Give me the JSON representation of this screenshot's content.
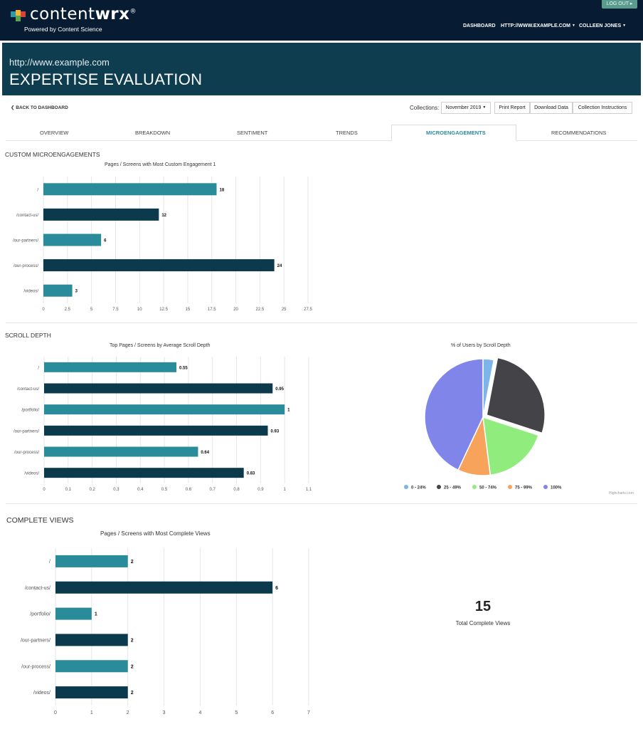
{
  "header": {
    "brand_light": "content",
    "brand_bold": "wrx",
    "brand_mark": "®",
    "tagline": "Powered by Content Science",
    "logout_label": "LOG OUT ▸",
    "nav": [
      "DASHBOARD",
      "HTTP://WWW.EXAMPLE.COM",
      "COLLEEN JONES"
    ],
    "logo_colors": [
      "#2b9aa8",
      "#f1b53c",
      "#d9413b",
      "#5aa54f"
    ]
  },
  "banner": {
    "url": "http://www.example.com",
    "title": "EXPERTISE EVALUATION"
  },
  "toolbar": {
    "back_label": "BACK TO DASHBOARD",
    "collections_label": "Collections:",
    "collection_value": "November 2019",
    "print_label": "Print Report",
    "download_label": "Download Data",
    "instructions_label": "Collection Instructions"
  },
  "tabs": [
    "OVERVIEW",
    "BREAKDOWN",
    "SENTIMENT",
    "TRENDS",
    "MICROENGAGEMENTS",
    "RECOMMENDATIONS"
  ],
  "active_tab": "MICROENGAGEMENTS",
  "sections": {
    "custom": "CUSTOM MICROENGAGEMENTS",
    "scroll": "SCROLL DEPTH",
    "complete": "COMPLETE VIEWS"
  },
  "colors": {
    "teal": "#2a8b9a",
    "navy": "#0b3a4d",
    "accent": "#2d8c9e"
  },
  "chart_data": [
    {
      "type": "bar",
      "orientation": "horizontal",
      "title": "Pages / Screens with Most Custom Engagement 1",
      "categories": [
        "/",
        "/contact-us/",
        "/our-partners/",
        "/our-process/",
        "/videos/"
      ],
      "values": [
        18,
        12,
        6,
        24,
        3
      ],
      "xlim": [
        0,
        27.5
      ],
      "xticks": [
        "0",
        "2.5",
        "5",
        "7.5",
        "10",
        "12.5",
        "15",
        "17.5",
        "20",
        "22.5",
        "25",
        "27.5"
      ],
      "grid": true
    },
    {
      "type": "bar",
      "orientation": "horizontal",
      "title": "Top Pages / Screens by Average Scroll Depth",
      "categories": [
        "/",
        "/contact-us/",
        "/portfolio/",
        "/our-partners/",
        "/our-process/",
        "/videos/"
      ],
      "values": [
        0.55,
        0.95,
        1,
        0.93,
        0.64,
        0.83
      ],
      "xlim": [
        0,
        1.1
      ],
      "xticks": [
        "0",
        "0.1",
        "0.2",
        "0.3",
        "0.4",
        "0.5",
        "0.6",
        "0.7",
        "0.8",
        "0.9",
        "1",
        "1.1"
      ],
      "grid": true
    },
    {
      "type": "pie",
      "title": "% of Users by Scroll Depth",
      "categories": [
        "0 - 24%",
        "25 - 49%",
        "50 - 74%",
        "75 - 99%",
        "100%"
      ],
      "values": [
        3,
        27,
        18,
        9,
        43
      ],
      "colors": [
        "#7cb5ec",
        "#434348",
        "#90ed7d",
        "#f7a35c",
        "#8085e9"
      ],
      "legend": "bottom",
      "credit": "Highcharts.com"
    },
    {
      "type": "bar",
      "orientation": "horizontal",
      "title": "Pages / Screens with Most Complete Views",
      "categories": [
        "/",
        "/contact-us/",
        "/portfolio/",
        "/our-partners/",
        "/our-process/",
        "/videos/"
      ],
      "values": [
        2,
        6,
        1,
        2,
        2,
        2
      ],
      "xlim": [
        0,
        7
      ],
      "xticks": [
        "0",
        "1",
        "2",
        "3",
        "4",
        "5",
        "6",
        "7"
      ],
      "grid": true
    }
  ],
  "complete_views": {
    "total": "15",
    "label": "Total Complete Views"
  }
}
